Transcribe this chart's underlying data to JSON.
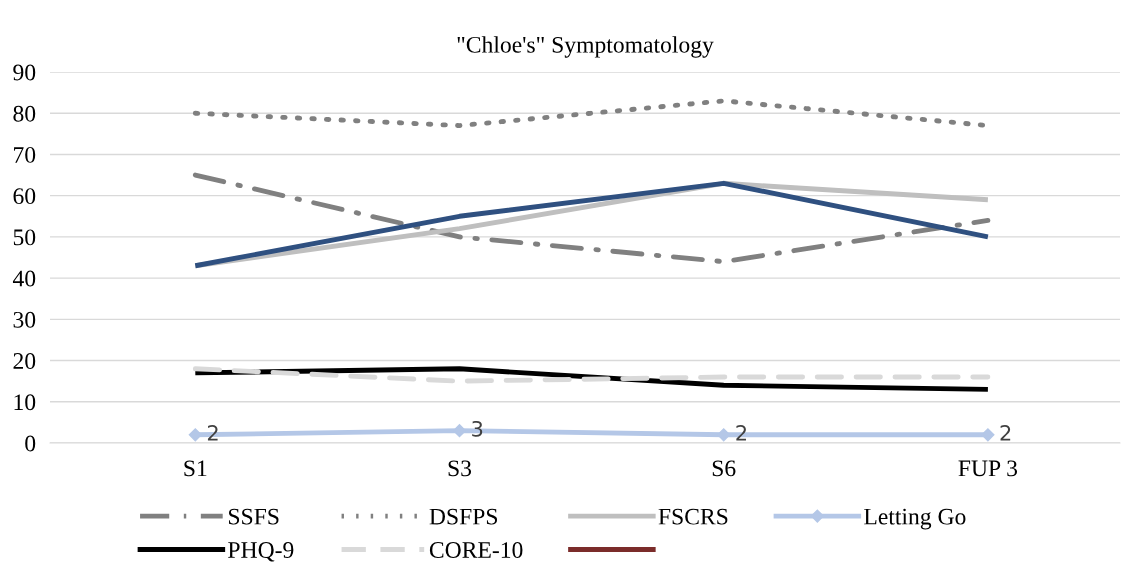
{
  "chart_data": {
    "type": "line",
    "title": "\"Chloe's\" Symptomatology",
    "categories": [
      "S1",
      "S3",
      "S6",
      "FUP 3"
    ],
    "ylim": [
      0,
      90
    ],
    "yticks": [
      0,
      10,
      20,
      30,
      40,
      50,
      60,
      70,
      80,
      90
    ],
    "grid": "y",
    "legend": "bottom",
    "series": [
      {
        "name": "SSFS",
        "color": "#808080",
        "line_style": "dashdot",
        "values": [
          65,
          50,
          44,
          54
        ]
      },
      {
        "name": "DSFPS",
        "color": "#808080",
        "line_style": "dotted",
        "values": [
          80,
          77,
          83,
          77
        ]
      },
      {
        "name": "FSCRS",
        "color": "#bfbfbf",
        "line_style": "solid",
        "values": [
          43,
          52,
          63,
          59
        ]
      },
      {
        "name": "Letting Go",
        "color": "#b4c7e7",
        "line_style": "solid",
        "marker": "diamond",
        "data_labels": true,
        "values": [
          2,
          3,
          2,
          2
        ]
      },
      {
        "name": "PHQ-9",
        "color": "#000000",
        "line_style": "solid",
        "values": [
          17,
          18,
          14,
          13
        ]
      },
      {
        "name": "CORE-10",
        "color": "#d9d9d9",
        "line_style": "dashed",
        "values": [
          18,
          15,
          16,
          16
        ]
      },
      {
        "color": "#7b2c2a",
        "line_style": "solid",
        "values": [
          null,
          null,
          null,
          null
        ]
      },
      {
        "color": "#2f5080",
        "line_style": "solid",
        "values": [
          43,
          55,
          63,
          50
        ]
      }
    ]
  }
}
